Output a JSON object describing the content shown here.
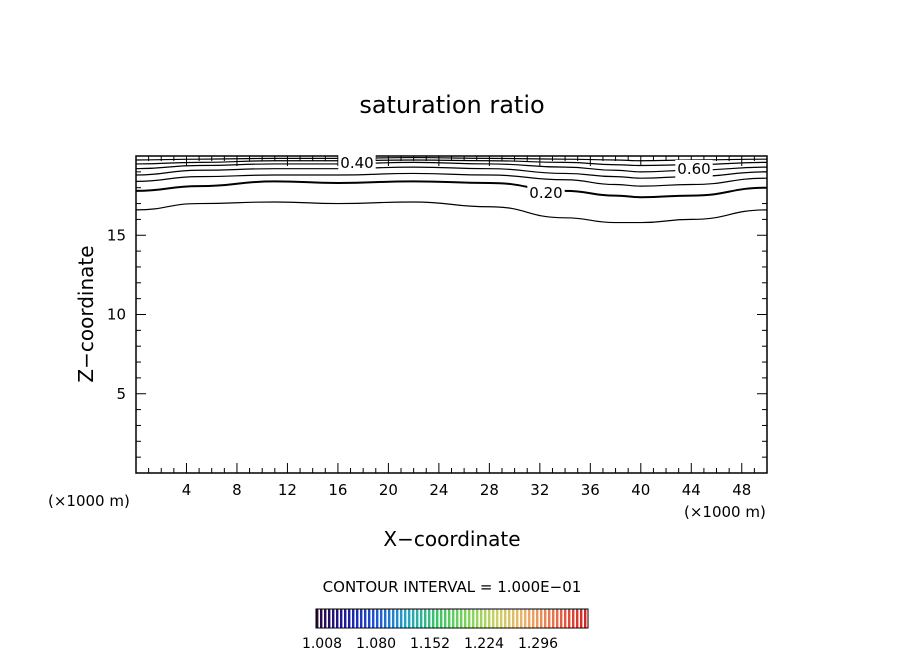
{
  "chart_data": {
    "type": "contour",
    "title": "saturation ratio",
    "xlabel": "X−coordinate",
    "ylabel": "Z−coordinate",
    "x_unit_left": "(×1000 m)",
    "x_unit_right": "(×1000 m)",
    "xlim": [
      0,
      50
    ],
    "ylim": [
      0,
      20
    ],
    "x_ticks": [
      4,
      8,
      12,
      16,
      20,
      24,
      28,
      32,
      36,
      40,
      44,
      48
    ],
    "y_ticks": [
      5,
      10,
      15
    ],
    "contour_labels": [
      "0.40",
      "0.60",
      "0.20"
    ],
    "contour_interval_text": "CONTOUR INTERVAL = 1.000E−01",
    "colorbar_ticks": [
      "1.008",
      "1.080",
      "1.152",
      "1.224",
      "1.296"
    ],
    "contours": [
      {
        "x": [
          0,
          5,
          11,
          16,
          22,
          28,
          34,
          38,
          40,
          44,
          50
        ],
        "z": [
          16.6,
          17.0,
          17.1,
          17.0,
          17.1,
          16.8,
          16.1,
          15.8,
          15.8,
          16.0,
          16.6
        ]
      },
      {
        "x": [
          0,
          5,
          11,
          16,
          22,
          28,
          34,
          38,
          40,
          44,
          50
        ],
        "z": [
          17.8,
          18.1,
          18.4,
          18.3,
          18.4,
          18.3,
          17.8,
          17.5,
          17.4,
          17.5,
          18.0
        ]
      },
      {
        "x": [
          0,
          5,
          11,
          16,
          22,
          28,
          34,
          38,
          40,
          44,
          50
        ],
        "z": [
          18.4,
          18.7,
          18.8,
          18.8,
          18.9,
          18.8,
          18.5,
          18.2,
          18.1,
          18.2,
          18.6
        ]
      },
      {
        "x": [
          0,
          5,
          11,
          16,
          22,
          28,
          34,
          38,
          40,
          44,
          50
        ],
        "z": [
          18.8,
          19.1,
          19.2,
          19.2,
          19.3,
          19.2,
          18.9,
          18.7,
          18.6,
          18.7,
          19.0
        ]
      },
      {
        "x": [
          0,
          5,
          11,
          16,
          22,
          28,
          34,
          38,
          40,
          44,
          50
        ],
        "z": [
          19.2,
          19.4,
          19.5,
          19.5,
          19.6,
          19.5,
          19.3,
          19.1,
          19.0,
          19.1,
          19.3
        ]
      },
      {
        "x": [
          0,
          5,
          11,
          16,
          22,
          28,
          34,
          38,
          40,
          44,
          50
        ],
        "z": [
          19.5,
          19.6,
          19.7,
          19.7,
          19.75,
          19.7,
          19.6,
          19.45,
          19.4,
          19.45,
          19.6
        ]
      },
      {
        "x": [
          0,
          5,
          11,
          16,
          22,
          28,
          34,
          38,
          40,
          44,
          50
        ],
        "z": [
          19.75,
          19.8,
          19.85,
          19.85,
          19.9,
          19.85,
          19.8,
          19.75,
          19.7,
          19.75,
          19.8
        ]
      }
    ],
    "grid": false,
    "colorbar_colors": [
      "#2a0a3a",
      "#1c1a9a",
      "#2456c8",
      "#2aa0c0",
      "#3fbf6a",
      "#7fd060",
      "#c8d070",
      "#e8b070",
      "#e07050",
      "#c82a2a"
    ]
  }
}
